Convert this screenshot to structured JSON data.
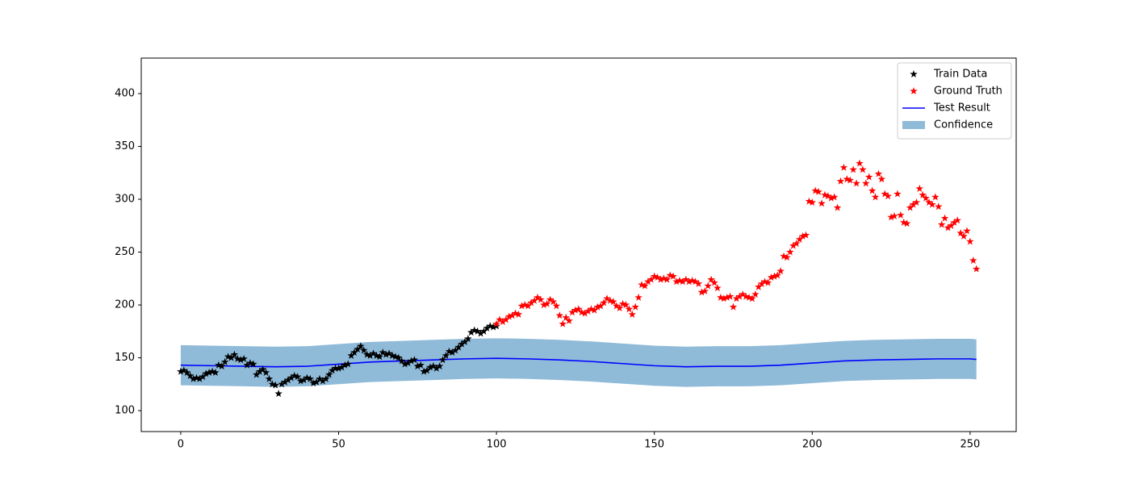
{
  "chart_data": {
    "type": "composite",
    "xlim": [
      -12.5,
      264.6
    ],
    "ylim": [
      80.2,
      433.6
    ],
    "xticks": [
      0,
      50,
      100,
      150,
      200,
      250
    ],
    "yticks": [
      100,
      150,
      200,
      250,
      300,
      350,
      400
    ],
    "legend": "upper right",
    "series": [
      {
        "name": "Train Data",
        "kind": "scatter",
        "color": "#000000",
        "x": [
          0,
          1,
          2,
          3,
          4,
          5,
          6,
          7,
          8,
          9,
          10,
          11,
          12,
          13,
          14,
          15,
          16,
          17,
          18,
          19,
          20,
          21,
          22,
          23,
          24,
          25,
          26,
          27,
          28,
          29,
          30,
          31,
          32,
          33,
          34,
          35,
          36,
          37,
          38,
          39,
          40,
          41,
          42,
          43,
          44,
          45,
          46,
          47,
          48,
          49,
          50,
          51,
          52,
          53,
          54,
          55,
          56,
          57,
          58,
          59,
          60,
          61,
          62,
          63,
          64,
          65,
          66,
          67,
          68,
          69,
          70,
          71,
          72,
          73,
          74,
          75,
          76,
          77,
          78,
          79,
          80,
          81,
          82,
          83,
          84,
          85,
          86,
          87,
          88,
          89,
          90,
          91,
          92,
          93,
          94,
          95,
          96,
          97,
          98,
          99,
          100
        ],
        "values": [
          137,
          138,
          136,
          133,
          130,
          131,
          130,
          132,
          135,
          136,
          137,
          136,
          143,
          142,
          146,
          151,
          150,
          153,
          149,
          148,
          149,
          143,
          145,
          144,
          134,
          137,
          139,
          136,
          130,
          125,
          124,
          116,
          125,
          127,
          129,
          131,
          133,
          132,
          128,
          129,
          131,
          130,
          126,
          127,
          130,
          128,
          130,
          134,
          138,
          140,
          140,
          141,
          143,
          144,
          152,
          155,
          158,
          161,
          157,
          153,
          152,
          154,
          152,
          151,
          155,
          153,
          154,
          152,
          151,
          150,
          147,
          144,
          145,
          147,
          148,
          142,
          143,
          137,
          138,
          141,
          142,
          140,
          142,
          148,
          152,
          156,
          155,
          157,
          160,
          163,
          165,
          168,
          174,
          176,
          175,
          173,
          175,
          178,
          180,
          179,
          180
        ]
      },
      {
        "name": "Ground Truth",
        "kind": "scatter",
        "color": "#ff0000",
        "x": [
          100,
          101,
          102,
          103,
          104,
          105,
          106,
          107,
          108,
          109,
          110,
          111,
          112,
          113,
          114,
          115,
          116,
          117,
          118,
          119,
          120,
          121,
          122,
          123,
          124,
          125,
          126,
          127,
          128,
          129,
          130,
          131,
          132,
          133,
          134,
          135,
          136,
          137,
          138,
          139,
          140,
          141,
          142,
          143,
          144,
          145,
          146,
          147,
          148,
          149,
          150,
          151,
          152,
          153,
          154,
          155,
          156,
          157,
          158,
          159,
          160,
          161,
          162,
          163,
          164,
          165,
          166,
          167,
          168,
          169,
          170,
          171,
          172,
          173,
          174,
          175,
          176,
          177,
          178,
          179,
          180,
          181,
          182,
          183,
          184,
          185,
          186,
          187,
          188,
          189,
          190,
          191,
          192,
          193,
          194,
          195,
          196,
          197,
          198,
          199,
          200,
          201,
          202,
          203,
          204,
          205,
          206,
          207,
          208,
          209,
          210,
          211,
          212,
          213,
          214,
          215,
          216,
          217,
          218,
          219,
          220,
          221,
          222,
          223,
          224,
          225,
          226,
          227,
          228,
          229,
          230,
          231,
          232,
          233,
          234,
          235,
          236,
          237,
          238,
          239,
          240,
          241,
          242,
          243,
          244,
          245,
          246,
          247,
          248,
          249,
          250,
          251,
          252
        ],
        "values": [
          182,
          186,
          184,
          186,
          189,
          190,
          192,
          191,
          199,
          200,
          199,
          202,
          204,
          207,
          205,
          200,
          201,
          205,
          203,
          199,
          190,
          182,
          188,
          185,
          193,
          195,
          196,
          193,
          192,
          194,
          196,
          195,
          198,
          199,
          202,
          206,
          204,
          203,
          199,
          197,
          201,
          200,
          196,
          191,
          198,
          207,
          219,
          218,
          222,
          224,
          227,
          226,
          224,
          225,
          224,
          228,
          227,
          222,
          223,
          222,
          224,
          222,
          223,
          222,
          220,
          212,
          213,
          218,
          224,
          221,
          216,
          207,
          206,
          207,
          208,
          198,
          206,
          208,
          210,
          208,
          207,
          206,
          210,
          217,
          220,
          222,
          221,
          226,
          227,
          228,
          232,
          246,
          245,
          250,
          256,
          258,
          262,
          265,
          266,
          298,
          297,
          308,
          307,
          296,
          304,
          303,
          301,
          302,
          292,
          317,
          330,
          319,
          318,
          328,
          315,
          334,
          328,
          315,
          321,
          308,
          302,
          324,
          319,
          305,
          303,
          283,
          284,
          305,
          285,
          278,
          277,
          292,
          295,
          297,
          310,
          304,
          301,
          297,
          295,
          302,
          293,
          276,
          282,
          273,
          275,
          278,
          280,
          268,
          265,
          270,
          260,
          242,
          234
        ]
      },
      {
        "name": "Test Result",
        "kind": "line",
        "color": "#0000ff",
        "x": [
          0,
          10,
          20,
          30,
          40,
          50,
          60,
          70,
          80,
          90,
          100,
          110,
          120,
          130,
          140,
          150,
          160,
          170,
          180,
          190,
          200,
          210,
          220,
          230,
          240,
          250,
          252
        ],
        "values": [
          143,
          142.5,
          142,
          141.5,
          142,
          144,
          146,
          147,
          148,
          149,
          149.5,
          149,
          148,
          146.5,
          144.5,
          142.5,
          141.5,
          142,
          142,
          143,
          145,
          147,
          148,
          148.5,
          149,
          149,
          148.5
        ]
      },
      {
        "name": "Confidence",
        "kind": "band",
        "color": "#8fbbd9",
        "x": [
          0,
          10,
          20,
          30,
          40,
          50,
          60,
          70,
          80,
          90,
          100,
          110,
          120,
          130,
          140,
          150,
          160,
          170,
          180,
          190,
          200,
          210,
          220,
          230,
          240,
          250,
          252
        ],
        "lower": [
          124,
          123.5,
          123,
          122.5,
          123,
          125,
          127,
          128,
          129,
          130,
          130.5,
          130,
          129,
          127.5,
          125.5,
          123.5,
          122.5,
          123,
          123,
          124,
          126,
          128,
          129,
          129.5,
          130,
          130,
          129.5
        ],
        "upper": [
          162,
          161.5,
          161,
          160.5,
          161,
          163,
          165,
          166,
          167,
          168,
          168.5,
          168,
          167,
          165.5,
          163.5,
          161.5,
          160.5,
          161,
          161,
          162,
          164,
          166,
          167,
          167.5,
          168,
          168,
          167.5
        ]
      }
    ]
  }
}
